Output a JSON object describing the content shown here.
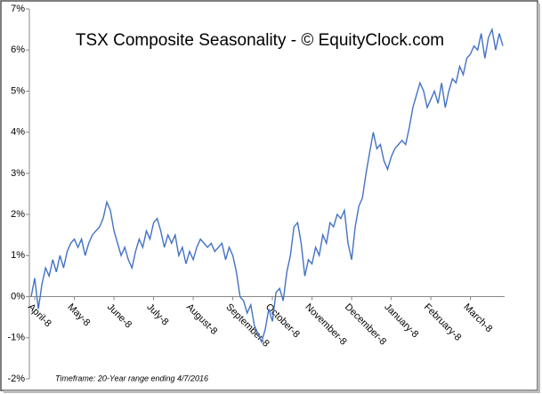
{
  "chart_data": {
    "type": "line",
    "title": "TSX Composite Seasonality - © EquityClock.com",
    "footnote": "Timeframe: 20-Year range ending 4/7/2016",
    "categories": [
      null,
      "April-8",
      null,
      null,
      null,
      null,
      null,
      null,
      null,
      null,
      null,
      null,
      "May-8",
      null,
      null,
      null,
      null,
      null,
      null,
      null,
      null,
      null,
      null,
      "June-8",
      null,
      null,
      null,
      null,
      null,
      null,
      null,
      null,
      null,
      null,
      "July-8",
      null,
      null,
      null,
      null,
      null,
      null,
      null,
      null,
      null,
      null,
      "August-8",
      null,
      null,
      null,
      null,
      null,
      null,
      null,
      null,
      null,
      null,
      "September-8",
      null,
      null,
      null,
      null,
      null,
      null,
      null,
      null,
      null,
      null,
      "October-8",
      null,
      null,
      null,
      null,
      null,
      null,
      null,
      null,
      null,
      null,
      "November-8",
      null,
      null,
      null,
      null,
      null,
      null,
      null,
      null,
      null,
      null,
      "December-8",
      null,
      null,
      null,
      null,
      null,
      null,
      null,
      null,
      null,
      null,
      "January-8",
      null,
      null,
      null,
      null,
      null,
      null,
      null,
      null,
      null,
      null,
      "February-8",
      null,
      null,
      null,
      null,
      null,
      null,
      null,
      null,
      null,
      null,
      "March-8",
      null,
      null,
      null,
      null,
      null,
      null,
      null,
      null,
      null
    ],
    "values": [
      0,
      0.45,
      -0.3,
      0.3,
      0.7,
      0.5,
      0.9,
      0.6,
      1.0,
      0.7,
      1.1,
      1.3,
      1.4,
      1.2,
      1.4,
      1.0,
      1.3,
      1.5,
      1.6,
      1.7,
      1.9,
      2.3,
      2.1,
      1.6,
      1.3,
      1.0,
      1.2,
      0.9,
      0.7,
      1.1,
      1.4,
      1.2,
      1.6,
      1.4,
      1.8,
      1.9,
      1.6,
      1.2,
      1.5,
      1.3,
      1.5,
      1.0,
      1.2,
      0.8,
      1.1,
      0.9,
      1.2,
      1.4,
      1.3,
      1.2,
      1.3,
      1.1,
      1.2,
      1.3,
      0.9,
      1.2,
      1.0,
      0.6,
      0.0,
      -0.1,
      -0.4,
      -0.2,
      -0.7,
      -0.9,
      -1.1,
      -0.8,
      -0.3,
      -0.6,
      0.1,
      0.2,
      -0.1,
      0.6,
      1.0,
      1.7,
      1.8,
      1.3,
      0.5,
      0.9,
      0.8,
      1.2,
      1.0,
      1.5,
      1.3,
      1.8,
      1.7,
      2.0,
      1.9,
      2.1,
      1.3,
      0.9,
      1.7,
      2.2,
      2.4,
      3.0,
      3.5,
      4.0,
      3.6,
      3.7,
      3.3,
      3.1,
      3.4,
      3.6,
      3.7,
      3.8,
      3.7,
      4.1,
      4.6,
      4.9,
      5.2,
      5.0,
      4.6,
      4.8,
      5.0,
      4.7,
      5.2,
      4.6,
      5.0,
      5.3,
      5.2,
      5.6,
      5.4,
      5.8,
      5.9,
      6.1,
      6.0,
      6.4,
      5.8,
      6.3,
      6.5,
      6.0,
      6.4,
      6.1
    ],
    "color": "#4472c4",
    "ylim": [
      -2,
      7
    ],
    "yticks": [
      {
        "value": -2,
        "label": "-2%"
      },
      {
        "value": -1,
        "label": "-1%"
      },
      {
        "value": 0,
        "label": "0%"
      },
      {
        "value": 1,
        "label": "1%"
      },
      {
        "value": 2,
        "label": "2%"
      },
      {
        "value": 3,
        "label": "3%"
      },
      {
        "value": 4,
        "label": "4%"
      },
      {
        "value": 5,
        "label": "5%"
      },
      {
        "value": 6,
        "label": "6%"
      },
      {
        "value": 7,
        "label": "7%"
      }
    ],
    "grid": false
  }
}
